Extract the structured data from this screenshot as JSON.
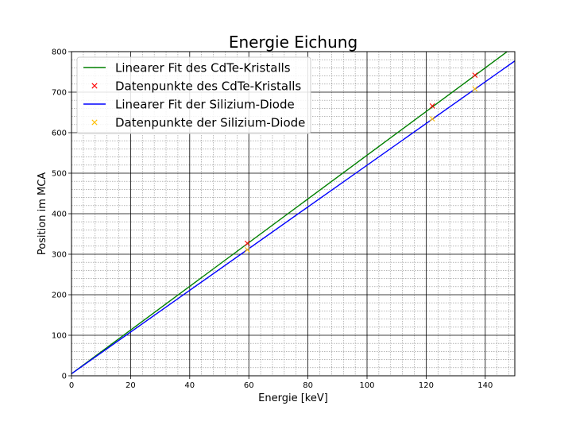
{
  "chart_data": {
    "type": "line",
    "title": "Energie Eichung",
    "xlabel": "Energie [keV]",
    "ylabel": "Position im MCA",
    "xlim": [
      0,
      150
    ],
    "ylim": [
      0,
      800
    ],
    "xticks": [
      0,
      20,
      40,
      60,
      80,
      100,
      120,
      140
    ],
    "yticks": [
      0,
      100,
      200,
      300,
      400,
      500,
      600,
      700,
      800
    ],
    "grid": "major and minor",
    "legend_position": "top-left",
    "series": [
      {
        "name": "Linearer Fit des CdTe-Kristalls",
        "kind": "line",
        "color": "#008000",
        "x": [
          0,
          150
        ],
        "y": [
          5,
          814
        ]
      },
      {
        "name": "Datenpunkte des CdTe-Kristalls",
        "kind": "scatter",
        "marker": "x",
        "color": "#ff0000",
        "x": [
          59.5,
          122.1,
          136.5
        ],
        "y": [
          327,
          666,
          742
        ]
      },
      {
        "name": "Linearer Fit der Silizium-Diode",
        "kind": "line",
        "color": "#0000ff",
        "x": [
          0,
          150
        ],
        "y": [
          5,
          777
        ]
      },
      {
        "name": "Datenpunkte der Silizium-Diode",
        "kind": "scatter",
        "marker": "x",
        "color": "#ffc000",
        "x": [
          59.5,
          122.1,
          136.5
        ],
        "y": [
          311,
          634,
          708
        ]
      }
    ]
  }
}
